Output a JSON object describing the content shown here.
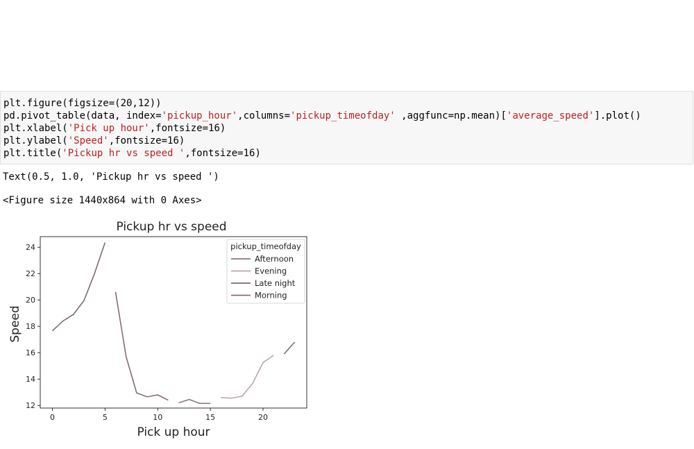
{
  "code": {
    "lines": [
      [
        {
          "t": "plt.figure(figsize=(20,12))"
        }
      ],
      [
        {
          "t": "pd.pivot_table(data, index="
        },
        {
          "t": "'pickup_hour'",
          "s": true
        },
        {
          "t": ",columns="
        },
        {
          "t": "'pickup_timeofday'",
          "s": true
        },
        {
          "t": " ,aggfunc=np.mean)["
        },
        {
          "t": "'average_speed'",
          "s": true
        },
        {
          "t": "].plot()"
        }
      ],
      [
        {
          "t": "plt.xlabel("
        },
        {
          "t": "'Pick up hour'",
          "s": true
        },
        {
          "t": ",fontsize=16)"
        }
      ],
      [
        {
          "t": "plt.ylabel("
        },
        {
          "t": "'Speed'",
          "s": true
        },
        {
          "t": ",fontsize=16)"
        }
      ],
      [
        {
          "t": "plt.title("
        },
        {
          "t": "'Pickup hr vs speed '",
          "s": true
        },
        {
          "t": ",fontsize=16)"
        }
      ]
    ]
  },
  "output": {
    "text_result": "Text(0.5, 1.0, 'Pickup hr vs speed ')",
    "figure_repr": "<Figure size 1440x864 with 0 Axes>"
  },
  "chart_data": {
    "type": "line",
    "title": "Pickup hr vs speed",
    "xlabel": "Pick up hour",
    "ylabel": "Speed",
    "xlim": [
      -1.15,
      24.15
    ],
    "ylim": [
      11.8,
      24.8
    ],
    "xticks": [
      0,
      5,
      10,
      15,
      20
    ],
    "yticks": [
      12,
      14,
      16,
      18,
      20,
      22,
      24
    ],
    "legend": {
      "title": "pickup_timeofday",
      "placement": "upper right"
    },
    "series": [
      {
        "name": "Afternoon",
        "color": "#8a7a78",
        "points": [
          [
            12,
            12.2
          ],
          [
            13,
            12.45
          ],
          [
            14,
            12.15
          ],
          [
            15,
            12.15
          ]
        ]
      },
      {
        "name": "Evening",
        "color": "#b9a6a2",
        "points": [
          [
            16,
            12.6
          ],
          [
            17,
            12.55
          ],
          [
            18,
            12.7
          ],
          [
            19,
            13.65
          ],
          [
            20,
            15.25
          ],
          [
            21,
            15.8
          ]
        ]
      },
      {
        "name": "Late night",
        "color": "#7d6a6e",
        "points": [
          [
            0,
            17.65
          ],
          [
            1,
            18.4
          ],
          [
            2,
            18.9
          ],
          [
            3,
            19.95
          ],
          [
            4,
            22.0
          ],
          [
            5,
            24.35
          ],
          [
            22,
            15.9
          ],
          [
            23,
            16.8
          ]
        ]
      },
      {
        "name": "Morning",
        "color": "#866c70",
        "points": [
          [
            6,
            20.6
          ],
          [
            7,
            15.7
          ],
          [
            8,
            12.95
          ],
          [
            9,
            12.65
          ],
          [
            10,
            12.8
          ],
          [
            11,
            12.4
          ]
        ]
      }
    ]
  }
}
